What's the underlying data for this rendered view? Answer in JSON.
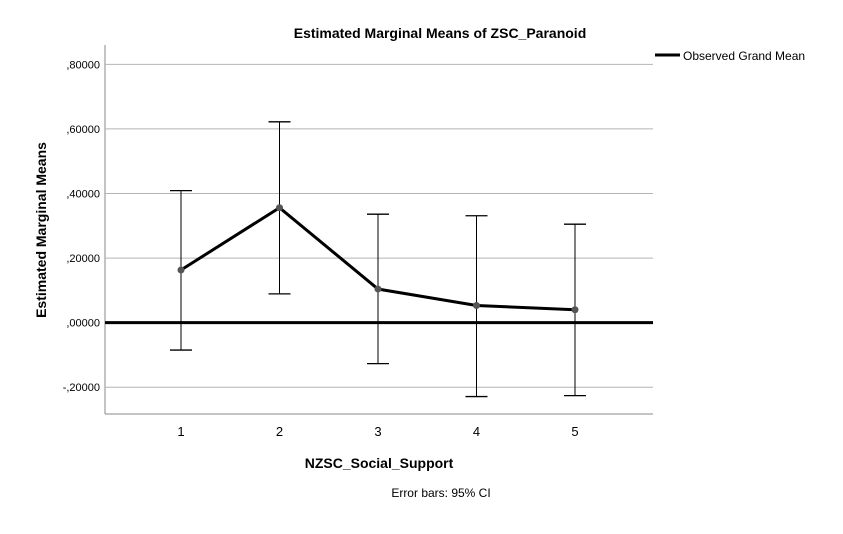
{
  "chart_data": {
    "type": "line",
    "title": "Estimated Marginal Means of ZSC_Paranoid",
    "xlabel": "NZSC_Social_Support",
    "ylabel": "Estimated Marginal Means",
    "categories": [
      "1",
      "2",
      "3",
      "4",
      "5"
    ],
    "series": [
      {
        "name": "Estimated Marginal Means",
        "values": [
          0.163,
          0.356,
          0.104,
          0.053,
          0.04
        ],
        "ci_lower": [
          -0.085,
          0.089,
          -0.127,
          -0.229,
          -0.226
        ],
        "ci_upper": [
          0.409,
          0.622,
          0.336,
          0.331,
          0.305
        ]
      }
    ],
    "reference_line": {
      "name": "Observed Grand Mean",
      "value": 0.0
    },
    "ylim": [
      -0.283,
      0.86
    ],
    "yticks": [
      -0.2,
      0.0,
      0.2,
      0.4,
      0.6,
      0.8
    ],
    "ytick_labels": [
      "-,20000",
      ",00000",
      ",20000",
      ",40000",
      ",60000",
      ",80000"
    ],
    "grid": true,
    "legend": {
      "entries": [
        "Observed Grand Mean"
      ],
      "placement": "top-right"
    },
    "footnote": "Error bars: 95% CI",
    "colors": {
      "line": "#000000",
      "marker": "#555555",
      "grid": "#b4b4b4",
      "axis": "#888888"
    }
  }
}
